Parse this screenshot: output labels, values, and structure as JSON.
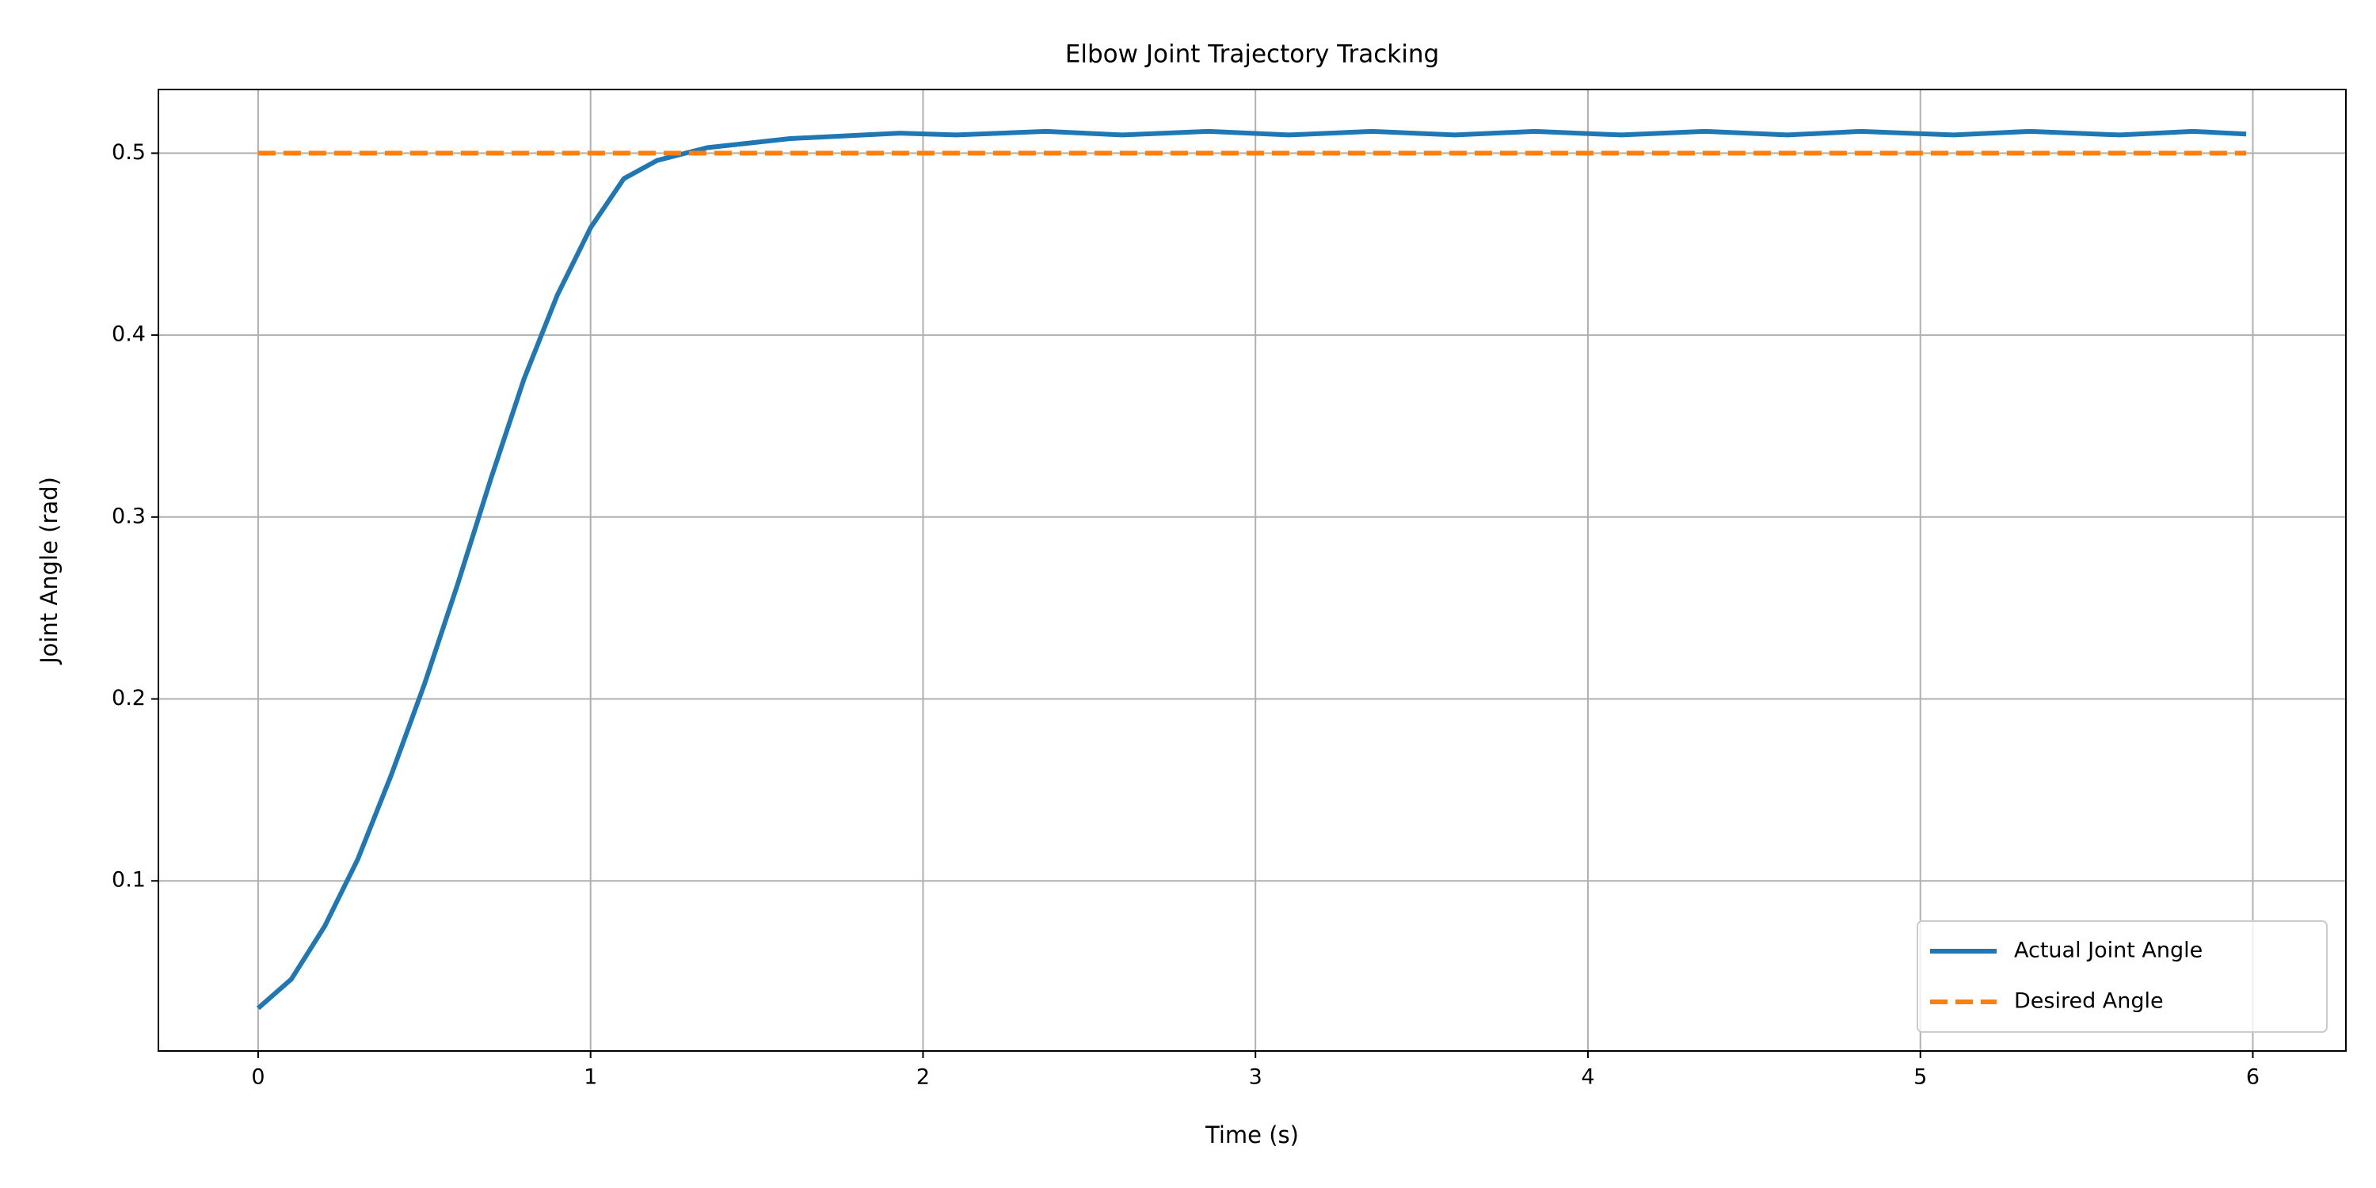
{
  "chart_data": {
    "type": "line",
    "title": "Elbow Joint Trajectory Tracking",
    "x_label": "Time (s)",
    "y_label": "Joint Angle (rad)",
    "series": [
      {
        "name": "Actual Joint Angle",
        "color": "#1f77b4",
        "dashed": false,
        "x": [
          0,
          0.1,
          0.2,
          0.3,
          0.4,
          0.5,
          0.6,
          0.7,
          0.8,
          0.9,
          1.0,
          1.1,
          1.2,
          1.35,
          1.6,
          1.93,
          2.1,
          2.37,
          2.6,
          2.86,
          3.1,
          3.35,
          3.6,
          3.84,
          4.1,
          4.35,
          4.6,
          4.82,
          5.1,
          5.33,
          5.6,
          5.82,
          5.98
        ],
        "values": [
          0.03,
          0.046,
          0.075,
          0.112,
          0.158,
          0.208,
          0.263,
          0.321,
          0.376,
          0.422,
          0.459,
          0.486,
          0.496,
          0.503,
          0.508,
          0.511,
          0.51,
          0.512,
          0.51,
          0.512,
          0.51,
          0.512,
          0.51,
          0.512,
          0.51,
          0.512,
          0.51,
          0.512,
          0.51,
          0.512,
          0.51,
          0.512,
          0.5105
        ]
      },
      {
        "name": "Desired Angle",
        "color": "#ff7f0e",
        "dashed": true,
        "x": [
          0,
          5.98
        ],
        "values": [
          0.5,
          0.5
        ]
      }
    ],
    "xlim": [
      -0.3,
      6.28
    ],
    "ylim": [
      0.0065,
      0.535
    ],
    "xticks": [
      0,
      1,
      2,
      3,
      4,
      5,
      6
    ],
    "yticks": [
      0.1,
      0.2,
      0.3,
      0.4,
      0.5
    ],
    "grid": true,
    "legend_position": "lower right"
  }
}
